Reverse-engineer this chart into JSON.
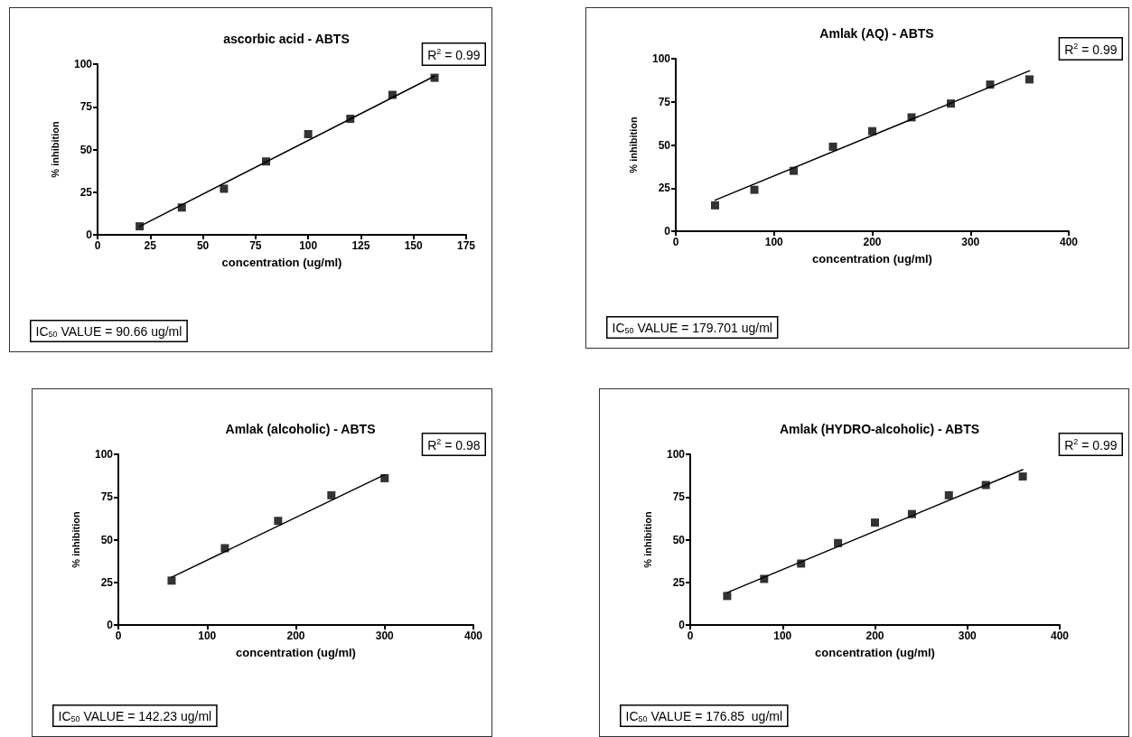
{
  "chart_data": [
    {
      "type": "scatter",
      "title": "ascorbic acid - ABTS",
      "xlabel": "concentration (ug/ml)",
      "ylabel": "% inhibition",
      "xlim": [
        0,
        175
      ],
      "xticks": [
        0,
        25,
        50,
        75,
        100,
        125,
        150,
        175
      ],
      "ylim": [
        0,
        100
      ],
      "yticks": [
        0,
        25,
        50,
        75,
        100
      ],
      "marker": "square",
      "annotations": [
        "R$^{2}$ = 0.99",
        "IC$_{50}$ VALUE = 90.66 ug/ml"
      ],
      "series": [
        {
          "color": "#000000",
          "x": [
            20,
            40,
            60,
            80,
            100,
            120,
            140,
            160
          ],
          "values": [
            5,
            16,
            27,
            43,
            59,
            68,
            82,
            92
          ]
        },
        {
          "type": "line",
          "color": "#000000",
          "marker": "none",
          "x": [
            20,
            160
          ],
          "values": [
            5,
            93
          ]
        }
      ]
    },
    {
      "type": "scatter",
      "title": "Amlak (AQ) - ABTS",
      "xlabel": "concentration (ug/ml)",
      "ylabel": "% inhibition",
      "xlim": [
        0,
        400
      ],
      "xticks": [
        0,
        100,
        200,
        300,
        400
      ],
      "ylim": [
        0,
        100
      ],
      "yticks": [
        0,
        25,
        50,
        75,
        100
      ],
      "marker": "square",
      "annotations": [
        "R$^{2}$ = 0.99",
        "IC$_{50}$ VALUE = 179.701 ug/ml"
      ],
      "series": [
        {
          "color": "#000000",
          "x": [
            40,
            80,
            120,
            160,
            200,
            240,
            280,
            320,
            360
          ],
          "values": [
            15,
            24,
            35,
            49,
            58,
            66,
            74,
            85,
            88
          ]
        },
        {
          "type": "line",
          "color": "#000000",
          "marker": "none",
          "x": [
            40,
            360
          ],
          "values": [
            18,
            93
          ]
        }
      ]
    },
    {
      "type": "scatter",
      "title": "Amlak (alcoholic) - ABTS",
      "xlabel": "concentration (ug/ml)",
      "ylabel": "% inhibition",
      "xlim": [
        0,
        400
      ],
      "xticks": [
        0,
        100,
        200,
        300,
        400
      ],
      "ylim": [
        0,
        100
      ],
      "yticks": [
        0,
        25,
        50,
        75,
        100
      ],
      "marker": "square",
      "annotations": [
        "R$^{2}$ = 0.98",
        "IC$_{50}$ VALUE = 142.23 ug/ml"
      ],
      "series": [
        {
          "color": "#000000",
          "x": [
            60,
            120,
            180,
            240,
            300
          ],
          "values": [
            26,
            45,
            61,
            76,
            86
          ]
        },
        {
          "type": "line",
          "color": "#000000",
          "marker": "none",
          "x": [
            60,
            300
          ],
          "values": [
            28,
            88
          ]
        }
      ]
    },
    {
      "type": "scatter",
      "title": "Amlak (HYDRO-alcoholic) - ABTS",
      "xlabel": "concentration (ug/ml)",
      "ylabel": "% inhibition",
      "xlim": [
        0,
        400
      ],
      "xticks": [
        0,
        100,
        200,
        300,
        400
      ],
      "ylim": [
        0,
        100
      ],
      "yticks": [
        0,
        25,
        50,
        75,
        100
      ],
      "marker": "square",
      "annotations": [
        "R$^{2}$ = 0.99",
        "IC$_{50}$ VALUE = 176.85  ug/ml"
      ],
      "series": [
        {
          "color": "#000000",
          "x": [
            40,
            80,
            120,
            160,
            200,
            240,
            280,
            320,
            360
          ],
          "values": [
            17,
            27,
            36,
            48,
            60,
            65,
            76,
            82,
            87
          ]
        },
        {
          "type": "line",
          "color": "#000000",
          "marker": "none",
          "x": [
            40,
            360
          ],
          "values": [
            19,
            91
          ]
        }
      ]
    }
  ]
}
